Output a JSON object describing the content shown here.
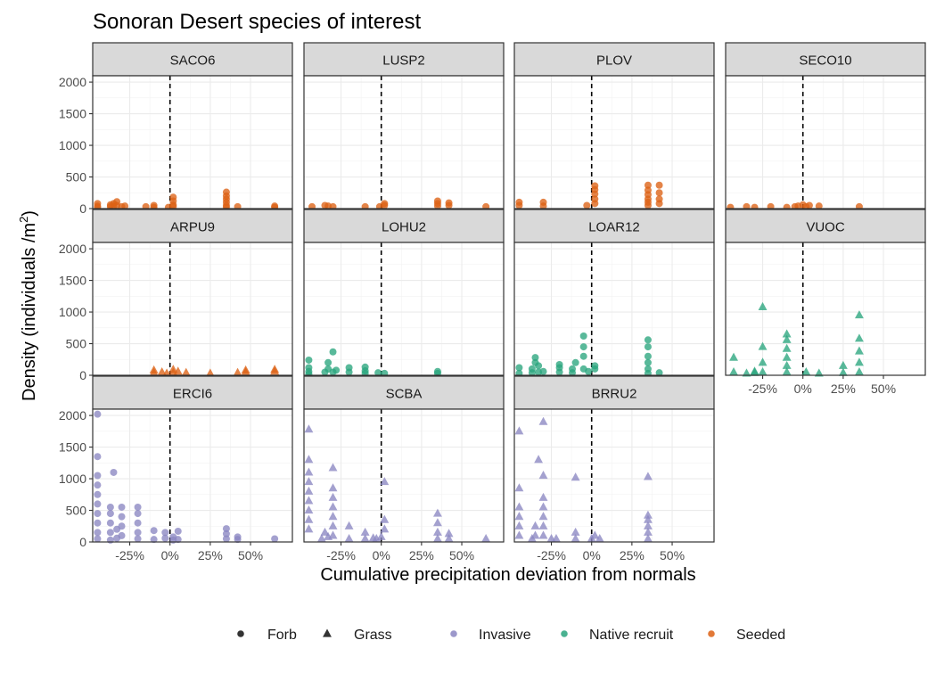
{
  "chart_data": {
    "type": "scatter",
    "title": "Sonoran Desert species of interest",
    "xlabel": "Cumulative precipitation deviation from normals",
    "ylabel_main": "Density (individuals /m",
    "ylabel_sup": "2",
    "ylabel_close": ")",
    "xlim": [
      -0.48,
      0.76
    ],
    "ylim": [
      0,
      2100
    ],
    "x_ticks": [
      -0.25,
      0,
      0.25,
      0.5
    ],
    "x_tick_labels": [
      "-25%",
      "0%",
      "25%",
      "50%"
    ],
    "y_ticks": [
      0,
      500,
      1000,
      1500,
      2000
    ],
    "y_tick_labels": [
      "0",
      "500",
      "1000",
      "1500",
      "2000"
    ],
    "reference_line_x": 0,
    "colors": {
      "Invasive": "#8b86c2",
      "Native recruit": "#2aa57e",
      "Seeded": "#dd6114"
    },
    "legend": {
      "shapes": [
        {
          "label": "Forb",
          "shape": "circle"
        },
        {
          "label": "Grass",
          "shape": "triangle"
        }
      ],
      "groups": [
        {
          "label": "Invasive"
        },
        {
          "label": "Native recruit"
        },
        {
          "label": "Seeded"
        }
      ]
    },
    "panels": [
      {
        "name": "SACO6",
        "group": "Seeded",
        "shape": "circle",
        "points": [
          [
            -0.45,
            40
          ],
          [
            -0.45,
            80
          ],
          [
            -0.45,
            20
          ],
          [
            -0.37,
            30
          ],
          [
            -0.37,
            60
          ],
          [
            -0.35,
            40
          ],
          [
            -0.35,
            80
          ],
          [
            -0.33,
            110
          ],
          [
            -0.33,
            50
          ],
          [
            -0.3,
            30
          ],
          [
            -0.28,
            40
          ],
          [
            -0.15,
            30
          ],
          [
            -0.1,
            20
          ],
          [
            -0.1,
            50
          ],
          [
            -0.01,
            20
          ],
          [
            0.02,
            60
          ],
          [
            0.02,
            120
          ],
          [
            0.02,
            180
          ],
          [
            0.02,
            30
          ],
          [
            0.35,
            50
          ],
          [
            0.35,
            100
          ],
          [
            0.35,
            150
          ],
          [
            0.35,
            200
          ],
          [
            0.35,
            260
          ],
          [
            0.35,
            20
          ],
          [
            0.42,
            30
          ],
          [
            0.65,
            40
          ],
          [
            0.65,
            20
          ]
        ]
      },
      {
        "name": "LUSP2",
        "group": "Seeded",
        "shape": "circle",
        "points": [
          [
            -0.43,
            30
          ],
          [
            -0.35,
            50
          ],
          [
            -0.33,
            40
          ],
          [
            -0.3,
            30
          ],
          [
            -0.1,
            30
          ],
          [
            -0.01,
            30
          ],
          [
            0.02,
            50
          ],
          [
            0.02,
            80
          ],
          [
            0.35,
            40
          ],
          [
            0.35,
            80
          ],
          [
            0.35,
            120
          ],
          [
            0.42,
            50
          ],
          [
            0.42,
            90
          ],
          [
            0.65,
            30
          ]
        ]
      },
      {
        "name": "PLOV",
        "group": "Seeded",
        "shape": "circle",
        "points": [
          [
            -0.45,
            50
          ],
          [
            -0.45,
            100
          ],
          [
            -0.3,
            40
          ],
          [
            -0.3,
            100
          ],
          [
            -0.03,
            50
          ],
          [
            0.02,
            80
          ],
          [
            0.02,
            150
          ],
          [
            0.02,
            230
          ],
          [
            0.02,
            300
          ],
          [
            0.02,
            360
          ],
          [
            0.35,
            50
          ],
          [
            0.35,
            100
          ],
          [
            0.35,
            150
          ],
          [
            0.35,
            220
          ],
          [
            0.35,
            290
          ],
          [
            0.35,
            370
          ],
          [
            0.42,
            80
          ],
          [
            0.42,
            150
          ],
          [
            0.42,
            250
          ],
          [
            0.42,
            370
          ]
        ]
      },
      {
        "name": "SECO10",
        "group": "Seeded",
        "shape": "circle",
        "points": [
          [
            -0.45,
            20
          ],
          [
            -0.35,
            30
          ],
          [
            -0.3,
            20
          ],
          [
            -0.2,
            30
          ],
          [
            -0.1,
            20
          ],
          [
            -0.05,
            30
          ],
          [
            -0.03,
            40
          ],
          [
            0.0,
            60
          ],
          [
            0.02,
            30
          ],
          [
            0.04,
            50
          ],
          [
            0.1,
            40
          ],
          [
            0.35,
            30
          ]
        ]
      },
      {
        "name": "ARPU9",
        "group": "Seeded",
        "shape": "triangle",
        "points": [
          [
            -0.1,
            80
          ],
          [
            -0.1,
            40
          ],
          [
            -0.05,
            50
          ],
          [
            -0.02,
            30
          ],
          [
            0.02,
            40
          ],
          [
            0.02,
            90
          ],
          [
            0.05,
            60
          ],
          [
            0.1,
            40
          ],
          [
            0.25,
            30
          ],
          [
            0.42,
            40
          ],
          [
            0.47,
            50
          ],
          [
            0.47,
            80
          ],
          [
            0.65,
            90
          ],
          [
            0.65,
            60
          ]
        ]
      },
      {
        "name": "LOHU2",
        "group": "Native recruit",
        "shape": "circle",
        "points": [
          [
            -0.45,
            20
          ],
          [
            -0.45,
            60
          ],
          [
            -0.45,
            120
          ],
          [
            -0.45,
            240
          ],
          [
            -0.35,
            50
          ],
          [
            -0.33,
            100
          ],
          [
            -0.33,
            200
          ],
          [
            -0.3,
            370
          ],
          [
            -0.3,
            50
          ],
          [
            -0.28,
            80
          ],
          [
            -0.2,
            50
          ],
          [
            -0.2,
            120
          ],
          [
            -0.1,
            30
          ],
          [
            -0.1,
            70
          ],
          [
            -0.1,
            130
          ],
          [
            -0.02,
            40
          ],
          [
            0.02,
            30
          ],
          [
            0.35,
            30
          ],
          [
            0.35,
            60
          ]
        ]
      },
      {
        "name": "LOAR12",
        "group": "Native recruit",
        "shape": "circle",
        "points": [
          [
            -0.45,
            30
          ],
          [
            -0.45,
            120
          ],
          [
            -0.37,
            40
          ],
          [
            -0.37,
            100
          ],
          [
            -0.35,
            200
          ],
          [
            -0.35,
            280
          ],
          [
            -0.33,
            50
          ],
          [
            -0.33,
            150
          ],
          [
            -0.3,
            60
          ],
          [
            -0.2,
            50
          ],
          [
            -0.2,
            120
          ],
          [
            -0.2,
            170
          ],
          [
            -0.12,
            40
          ],
          [
            -0.12,
            100
          ],
          [
            -0.1,
            200
          ],
          [
            -0.05,
            100
          ],
          [
            -0.05,
            300
          ],
          [
            -0.05,
            450
          ],
          [
            -0.05,
            620
          ],
          [
            -0.02,
            60
          ],
          [
            0.02,
            100
          ],
          [
            0.02,
            150
          ],
          [
            0.35,
            30
          ],
          [
            0.35,
            100
          ],
          [
            0.35,
            200
          ],
          [
            0.35,
            300
          ],
          [
            0.35,
            450
          ],
          [
            0.35,
            560
          ],
          [
            0.42,
            40
          ]
        ]
      },
      {
        "name": "VUOC",
        "group": "Native recruit",
        "shape": "triangle",
        "points": [
          [
            -0.43,
            50
          ],
          [
            -0.43,
            280
          ],
          [
            -0.35,
            30
          ],
          [
            -0.3,
            40
          ],
          [
            -0.3,
            60
          ],
          [
            -0.25,
            50
          ],
          [
            -0.25,
            200
          ],
          [
            -0.25,
            450
          ],
          [
            -0.25,
            1080
          ],
          [
            -0.1,
            50
          ],
          [
            -0.1,
            150
          ],
          [
            -0.1,
            280
          ],
          [
            -0.1,
            420
          ],
          [
            -0.1,
            560
          ],
          [
            -0.1,
            650
          ],
          [
            0.02,
            50
          ],
          [
            0.1,
            30
          ],
          [
            0.25,
            40
          ],
          [
            0.25,
            150
          ],
          [
            0.35,
            50
          ],
          [
            0.35,
            200
          ],
          [
            0.35,
            380
          ],
          [
            0.35,
            580
          ],
          [
            0.35,
            950
          ]
        ]
      },
      {
        "name": "ERCI6",
        "group": "Invasive",
        "shape": "circle",
        "points": [
          [
            -0.45,
            50
          ],
          [
            -0.45,
            150
          ],
          [
            -0.45,
            300
          ],
          [
            -0.45,
            450
          ],
          [
            -0.45,
            600
          ],
          [
            -0.45,
            750
          ],
          [
            -0.45,
            900
          ],
          [
            -0.45,
            1050
          ],
          [
            -0.45,
            1350
          ],
          [
            -0.45,
            2020
          ],
          [
            -0.37,
            30
          ],
          [
            -0.37,
            150
          ],
          [
            -0.37,
            300
          ],
          [
            -0.37,
            450
          ],
          [
            -0.37,
            550
          ],
          [
            -0.35,
            1100
          ],
          [
            -0.33,
            60
          ],
          [
            -0.33,
            200
          ],
          [
            -0.3,
            100
          ],
          [
            -0.3,
            250
          ],
          [
            -0.3,
            400
          ],
          [
            -0.3,
            550
          ],
          [
            -0.2,
            50
          ],
          [
            -0.2,
            150
          ],
          [
            -0.2,
            300
          ],
          [
            -0.2,
            450
          ],
          [
            -0.2,
            550
          ],
          [
            -0.1,
            40
          ],
          [
            -0.1,
            180
          ],
          [
            -0.03,
            60
          ],
          [
            -0.03,
            150
          ],
          [
            0.02,
            30
          ],
          [
            0.02,
            80
          ],
          [
            0.05,
            40
          ],
          [
            0.05,
            170
          ],
          [
            0.35,
            50
          ],
          [
            0.35,
            130
          ],
          [
            0.35,
            210
          ],
          [
            0.42,
            40
          ],
          [
            0.42,
            80
          ],
          [
            0.65,
            50
          ]
        ]
      },
      {
        "name": "SCBA",
        "group": "Invasive",
        "shape": "triangle",
        "points": [
          [
            -0.45,
            200
          ],
          [
            -0.45,
            350
          ],
          [
            -0.45,
            500
          ],
          [
            -0.45,
            650
          ],
          [
            -0.45,
            800
          ],
          [
            -0.45,
            950
          ],
          [
            -0.45,
            1100
          ],
          [
            -0.45,
            1300
          ],
          [
            -0.45,
            1780
          ],
          [
            -0.37,
            50
          ],
          [
            -0.35,
            150
          ],
          [
            -0.33,
            80
          ],
          [
            -0.3,
            100
          ],
          [
            -0.3,
            250
          ],
          [
            -0.3,
            400
          ],
          [
            -0.3,
            550
          ],
          [
            -0.3,
            700
          ],
          [
            -0.3,
            850
          ],
          [
            -0.3,
            1170
          ],
          [
            -0.2,
            50
          ],
          [
            -0.2,
            250
          ],
          [
            -0.1,
            50
          ],
          [
            -0.1,
            150
          ],
          [
            -0.05,
            60
          ],
          [
            -0.03,
            50
          ],
          [
            0.0,
            80
          ],
          [
            0.02,
            200
          ],
          [
            0.02,
            350
          ],
          [
            0.02,
            950
          ],
          [
            0.35,
            50
          ],
          [
            0.35,
            150
          ],
          [
            0.35,
            300
          ],
          [
            0.35,
            450
          ],
          [
            0.42,
            50
          ],
          [
            0.42,
            130
          ],
          [
            0.65,
            50
          ]
        ]
      },
      {
        "name": "BRRU2",
        "group": "Invasive",
        "shape": "triangle",
        "points": [
          [
            -0.45,
            100
          ],
          [
            -0.45,
            250
          ],
          [
            -0.45,
            400
          ],
          [
            -0.45,
            550
          ],
          [
            -0.45,
            850
          ],
          [
            -0.45,
            1750
          ],
          [
            -0.37,
            50
          ],
          [
            -0.35,
            100
          ],
          [
            -0.35,
            250
          ],
          [
            -0.33,
            1300
          ],
          [
            -0.3,
            100
          ],
          [
            -0.3,
            250
          ],
          [
            -0.3,
            400
          ],
          [
            -0.3,
            550
          ],
          [
            -0.3,
            700
          ],
          [
            -0.3,
            1050
          ],
          [
            -0.3,
            1900
          ],
          [
            -0.25,
            50
          ],
          [
            -0.22,
            50
          ],
          [
            -0.1,
            50
          ],
          [
            -0.1,
            150
          ],
          [
            -0.1,
            1020
          ],
          [
            0.0,
            50
          ],
          [
            0.02,
            100
          ],
          [
            0.05,
            50
          ],
          [
            0.35,
            50
          ],
          [
            0.35,
            150
          ],
          [
            0.35,
            250
          ],
          [
            0.35,
            350
          ],
          [
            0.35,
            420
          ],
          [
            0.35,
            1030
          ]
        ]
      }
    ]
  }
}
